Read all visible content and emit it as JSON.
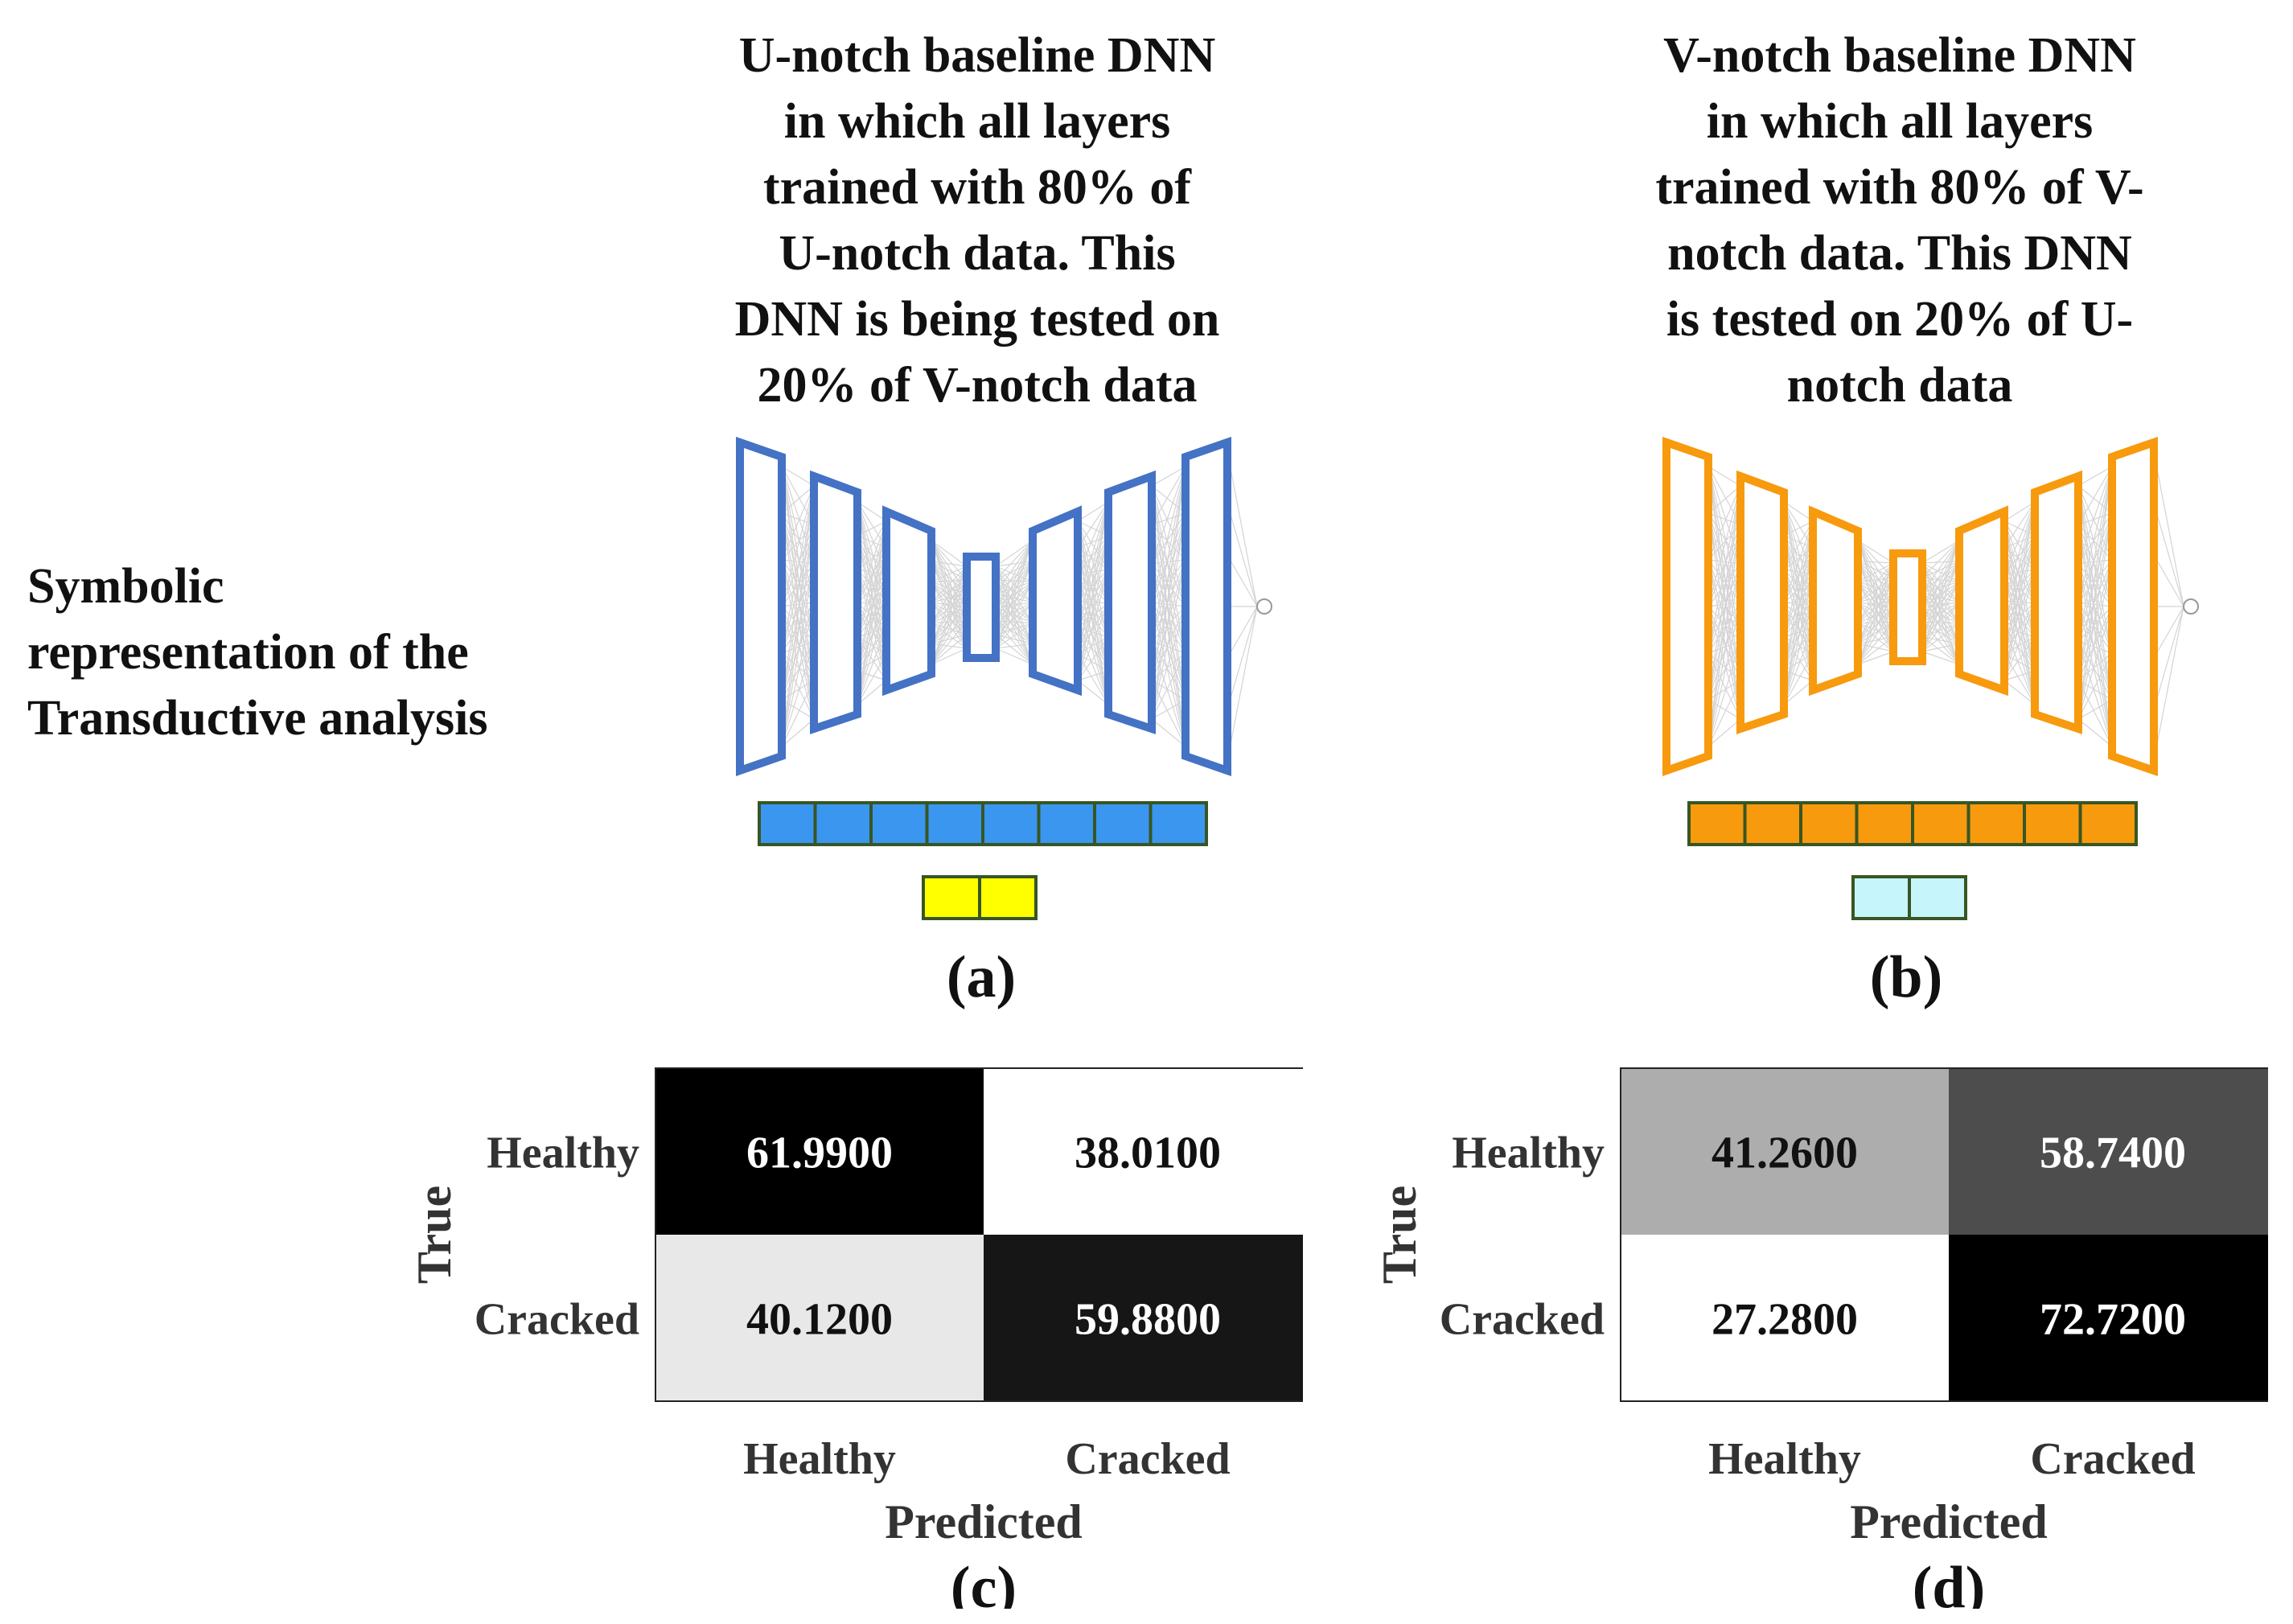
{
  "side_label": {
    "lines": [
      "Symbolic",
      "representation of the",
      "Transductive analysis"
    ]
  },
  "panel_a": {
    "title_lines": [
      "U-notch baseline DNN",
      "in which all layers",
      "trained with 80% of",
      "U-notch data. This",
      "DNN is being tested on",
      "20% of V-notch data"
    ],
    "label": "(a)",
    "colors": {
      "network": "#4472C4",
      "train_bar": "#3B96F0",
      "test_bar": "#FFFF00",
      "bar_border": "#375623"
    }
  },
  "panel_b": {
    "title_lines": [
      "V-notch baseline DNN",
      "in which all layers",
      "trained with 80% of V-",
      "notch data. This DNN",
      "is tested on 20% of U-",
      "notch data"
    ],
    "label": "(b)",
    "colors": {
      "network": "#F79A0E",
      "train_bar": "#F79A0E",
      "test_bar": "#C6F5FB",
      "bar_border": "#375623"
    }
  },
  "panel_c": {
    "label": "(c)",
    "true_label": "True",
    "predicted_label": "Predicted",
    "row_labels": [
      "Healthy",
      "Cracked"
    ],
    "col_labels": [
      "Healthy",
      "Cracked"
    ],
    "cells": [
      [
        {
          "text": "61.9900",
          "fill": "#000000",
          "font": "#ffffff"
        },
        {
          "text": "38.0100",
          "fill": "#ffffff",
          "font": "#111111"
        }
      ],
      [
        {
          "text": "40.1200",
          "fill": "#E8E8E8",
          "font": "#111111"
        },
        {
          "text": "59.8800",
          "fill": "#161616",
          "font": "#ffffff"
        }
      ]
    ]
  },
  "panel_d": {
    "label": "(d)",
    "true_label": "True",
    "predicted_label": "Predicted",
    "row_labels": [
      "Healthy",
      "Cracked"
    ],
    "col_labels": [
      "Healthy",
      "Cracked"
    ],
    "cells": [
      [
        {
          "text": "41.2600",
          "fill": "#ADADAD",
          "font": "#111111"
        },
        {
          "text": "58.7400",
          "fill": "#4D4D4D",
          "font": "#ffffff"
        }
      ],
      [
        {
          "text": "27.2800",
          "fill": "#ffffff",
          "font": "#111111"
        },
        {
          "text": "72.7200",
          "fill": "#000000",
          "font": "#ffffff"
        }
      ]
    ]
  }
}
